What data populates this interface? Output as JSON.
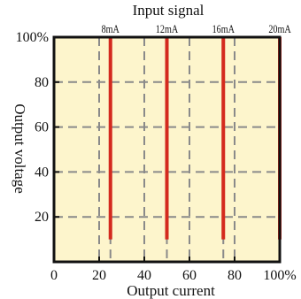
{
  "chart_data": {
    "type": "line",
    "title": "Input signal",
    "xlabel": "Output current",
    "ylabel": "Output voltage",
    "x_ticks": [
      "0",
      "20",
      "40",
      "60",
      "80",
      "100%"
    ],
    "y_ticks": [
      "100%",
      "80",
      "60",
      "40",
      "20"
    ],
    "xlim": [
      0,
      100
    ],
    "ylim": [
      0,
      100
    ],
    "grid": true,
    "series": [
      {
        "name": "8mA",
        "x": [
          25,
          25
        ],
        "y": [
          10,
          100
        ]
      },
      {
        "name": "12mA",
        "x": [
          50,
          50
        ],
        "y": [
          10,
          100
        ]
      },
      {
        "name": "16mA",
        "x": [
          75,
          75
        ],
        "y": [
          10,
          100
        ]
      },
      {
        "name": "20mA",
        "x": [
          100,
          100
        ],
        "y": [
          10,
          100
        ]
      }
    ],
    "colors": {
      "background": "#fdf5cc",
      "line": "#d42a1e",
      "grid": "#8a8a8a",
      "frame": "#111111"
    }
  }
}
